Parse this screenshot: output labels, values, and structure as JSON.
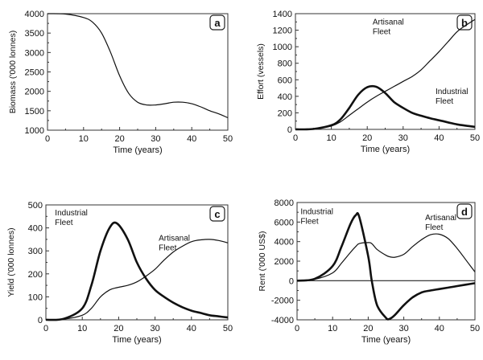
{
  "chart_data": [
    {
      "type": "line",
      "panel_label": "a",
      "xlabel": "Time (years)",
      "ylabel": "Biomass ('000 lonnes)",
      "xlim": [
        0,
        50
      ],
      "ylim": [
        1000,
        4000
      ],
      "xticks": [
        0,
        10,
        20,
        30,
        40,
        50
      ],
      "yticks": [
        1000,
        1500,
        2000,
        2500,
        3000,
        3500,
        4000
      ],
      "x": [
        0,
        5,
        10,
        12.5,
        15,
        17.5,
        20,
        22.5,
        25,
        27.5,
        30,
        32.5,
        35,
        37.5,
        40,
        42.5,
        45,
        47.5,
        50
      ],
      "series": [
        {
          "values": [
            4000,
            3990,
            3900,
            3780,
            3500,
            3000,
            2400,
            1950,
            1720,
            1650,
            1650,
            1680,
            1720,
            1720,
            1680,
            1600,
            1500,
            1420,
            1320
          ],
          "weight": "thin"
        }
      ]
    },
    {
      "type": "line",
      "panel_label": "b",
      "xlabel": "Time (years)",
      "ylabel": "Effort (vessels)",
      "xlim": [
        0,
        50
      ],
      "ylim": [
        0,
        1400
      ],
      "xticks": [
        0,
        10,
        20,
        30,
        40,
        50
      ],
      "yticks": [
        0,
        200,
        400,
        600,
        800,
        1000,
        1200,
        1400
      ],
      "x": [
        0,
        5,
        10,
        12.5,
        15,
        17.5,
        20,
        22.5,
        25,
        27.5,
        30,
        32.5,
        35,
        37.5,
        40,
        42.5,
        45,
        47.5,
        50
      ],
      "series": [
        {
          "name": "Artisanal Fleet",
          "label_lines": [
            "Artisanal",
            "Fleet"
          ],
          "values": [
            0,
            5,
            40,
            90,
            170,
            250,
            330,
            400,
            460,
            520,
            580,
            640,
            720,
            830,
            940,
            1060,
            1180,
            1260,
            1330
          ],
          "weight": "thin"
        },
        {
          "name": "Industrial Fleet",
          "label_lines": [
            "Industrial",
            "Fleet"
          ],
          "values": [
            0,
            5,
            50,
            120,
            260,
            420,
            510,
            515,
            440,
            330,
            260,
            200,
            165,
            135,
            110,
            85,
            60,
            45,
            30
          ],
          "weight": "thick"
        }
      ]
    },
    {
      "type": "line",
      "panel_label": "c",
      "xlabel": "Time (years)",
      "ylabel": "Yield ('000 lonnes)",
      "xlim": [
        0,
        50
      ],
      "ylim": [
        0,
        500
      ],
      "xticks": [
        0,
        10,
        20,
        30,
        40,
        50
      ],
      "yticks": [
        0,
        100,
        200,
        300,
        400,
        500
      ],
      "x": [
        0,
        5,
        10,
        12.5,
        15,
        17.5,
        19.5,
        22.5,
        25,
        27.5,
        30,
        32.5,
        35,
        37.5,
        40,
        42.5,
        45,
        47.5,
        50
      ],
      "series": [
        {
          "name": "Industrial Fleet",
          "label_lines": [
            "Industrial",
            "Fleet"
          ],
          "values": [
            0,
            5,
            50,
            150,
            300,
            400,
            420,
            350,
            250,
            180,
            130,
            100,
            75,
            55,
            40,
            30,
            20,
            15,
            10
          ],
          "weight": "thick"
        },
        {
          "name": "Artisanal Fleet",
          "label_lines": [
            "Artisanal",
            "Fleet"
          ],
          "values": [
            0,
            3,
            20,
            50,
            100,
            130,
            140,
            150,
            165,
            190,
            220,
            260,
            295,
            320,
            340,
            348,
            350,
            345,
            335
          ],
          "weight": "thin"
        }
      ]
    },
    {
      "type": "line",
      "panel_label": "d",
      "xlabel": "Time (years)",
      "ylabel": "Rent ('000 US$)",
      "xlim": [
        0,
        50
      ],
      "ylim": [
        -4000,
        8000
      ],
      "xticks": [
        0,
        10,
        20,
        30,
        40,
        50
      ],
      "yticks": [
        -4000,
        -2000,
        0,
        2000,
        4000,
        6000,
        8000
      ],
      "zero_line": true,
      "x": [
        0,
        5,
        10,
        12.5,
        15,
        16.5,
        17.5,
        20,
        21,
        22.5,
        25,
        26,
        27.5,
        30,
        32.5,
        35,
        37.5,
        40,
        42.5,
        45,
        47.5,
        50
      ],
      "series": [
        {
          "name": "Industrial Fleet",
          "label_lines": [
            "Industrial",
            "Fleet"
          ],
          "values": [
            0,
            200,
            1500,
            3500,
            5800,
            6700,
            6500,
            2500,
            0,
            -2500,
            -3800,
            -3900,
            -3500,
            -2500,
            -1700,
            -1200,
            -1000,
            -850,
            -700,
            -550,
            -400,
            -250
          ],
          "weight": "thick"
        },
        {
          "name": "Artisanal Fleet",
          "label_lines": [
            "Artisanal",
            "Fleet"
          ],
          "values": [
            0,
            150,
            800,
            1800,
            2900,
            3500,
            3800,
            3900,
            3800,
            3200,
            2600,
            2450,
            2400,
            2700,
            3500,
            4200,
            4700,
            4750,
            4300,
            3300,
            2100,
            900
          ],
          "weight": "thin"
        }
      ]
    }
  ]
}
